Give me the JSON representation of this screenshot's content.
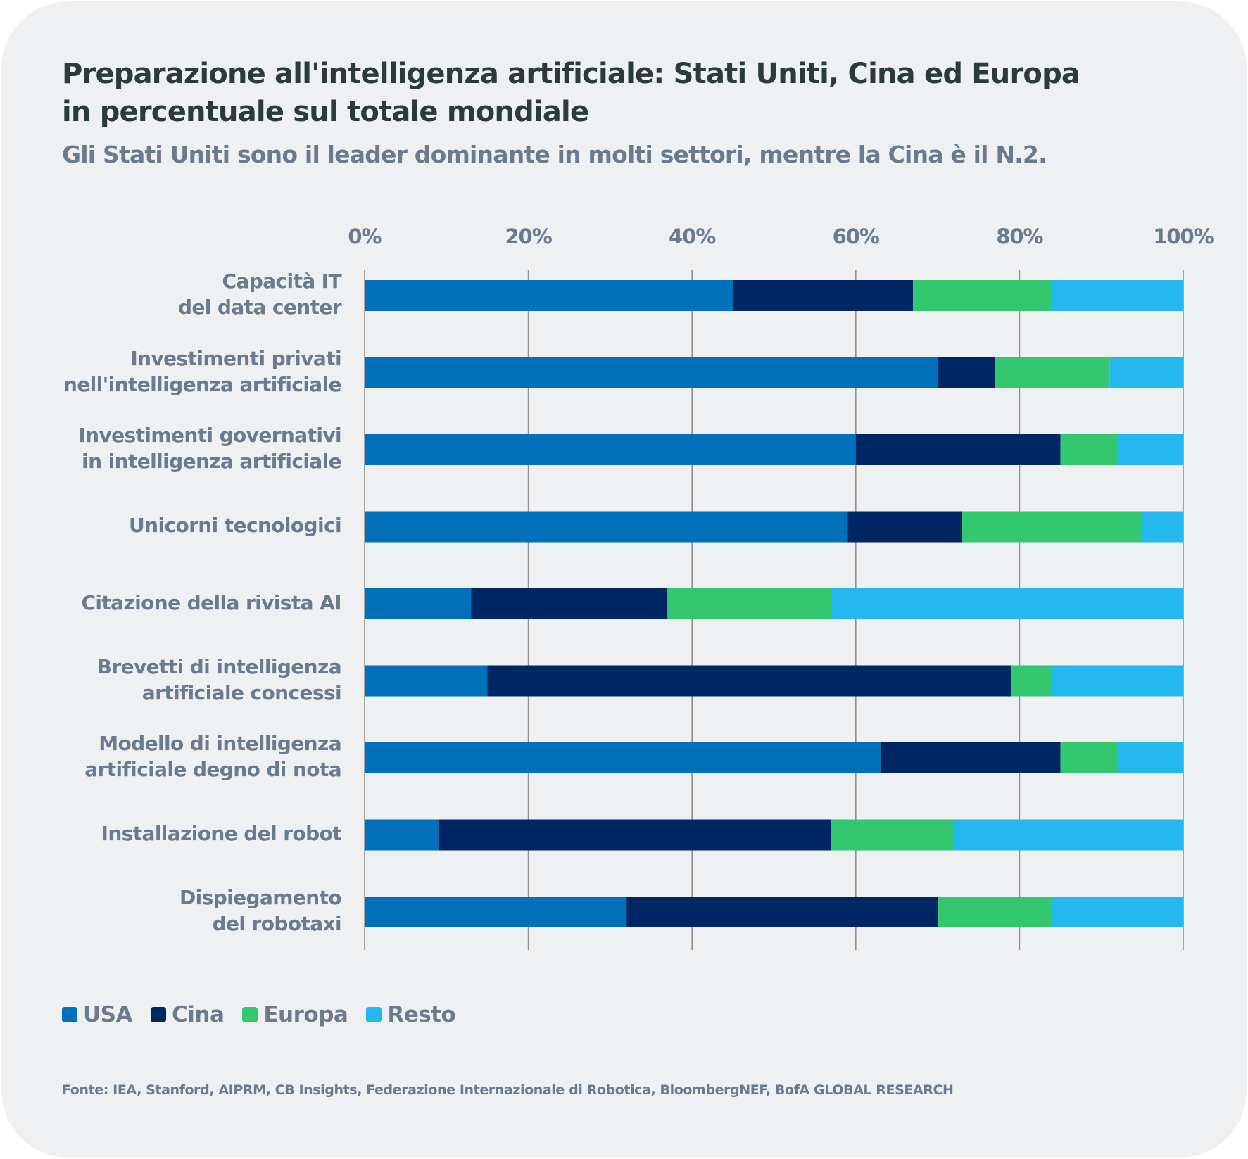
{
  "header": {
    "title_line1": "Preparazione all'intelligenza artificiale: Stati Uniti, Cina ed Europa",
    "title_line2": "in percentuale sul totale mondiale",
    "subtitle": "Gli Stati Uniti sono il leader dominante in molti settori, mentre la Cina è il N.2."
  },
  "source": "Fonte: IEA, Stanford, AIPRM, CB Insights, Federazione Internazionale di Robotica, BloombergNEF, BofA GLOBAL RESEARCH",
  "colors": {
    "USA": "#0070bb",
    "Cina": "#002663",
    "Europa": "#33c770",
    "Resto": "#24b8ef",
    "gridline": "#909090",
    "text": "#6b7a8c",
    "title": "#2c3a3a"
  },
  "chart_data": {
    "type": "bar",
    "orientation": "horizontal",
    "stacked": true,
    "title": "Preparazione all'intelligenza artificiale: Stati Uniti, Cina ed Europa in percentuale sul totale mondiale",
    "subtitle": "Gli Stati Uniti sono il leader dominante in molti settori, mentre la Cina è il N.2.",
    "xlabel": "",
    "ylabel": "",
    "xlim": [
      0,
      100
    ],
    "x_ticks": [
      "0%",
      "20%",
      "40%",
      "60%",
      "80%",
      "100%"
    ],
    "x_tick_values": [
      0,
      20,
      40,
      60,
      80,
      100
    ],
    "grid": true,
    "legend_position": "bottom-left",
    "categories": [
      "Capacità IT\ndel data center",
      "Investimenti privati\nnell'intelligenza artificiale",
      "Investimenti governativi\nin intelligenza artificiale",
      "Unicorni tecnologici",
      "Citazione della rivista AI",
      "Brevetti di intelligenza\nartificiale concessi",
      "Modello di intelligenza\nartificiale degno di nota",
      "Installazione del robot",
      "Dispiegamento\ndel robotaxi"
    ],
    "series": [
      {
        "name": "USA",
        "values": [
          45,
          70,
          60,
          59,
          13,
          15,
          63,
          9,
          32
        ]
      },
      {
        "name": "Cina",
        "values": [
          22,
          7,
          25,
          14,
          24,
          64,
          22,
          48,
          38
        ]
      },
      {
        "name": "Europa",
        "values": [
          17,
          14,
          7,
          22,
          20,
          5,
          7,
          15,
          14
        ]
      },
      {
        "name": "Resto",
        "values": [
          16,
          9,
          8,
          5,
          43,
          16,
          8,
          28,
          16
        ]
      }
    ]
  }
}
